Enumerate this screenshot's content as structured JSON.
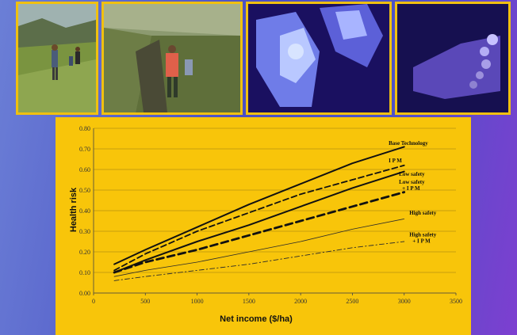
{
  "chart_data": {
    "type": "line",
    "xlabel": "Net income ($/ha)",
    "ylabel": "Health risk",
    "xlim": [
      0,
      3500
    ],
    "ylim": [
      0,
      0.8
    ],
    "xticks": [
      "0",
      "500",
      "1000",
      "1500",
      "2000",
      "2500",
      "3000",
      "3500"
    ],
    "yticks": [
      "0.00",
      "0.10",
      "0.20",
      "0.30",
      "0.40",
      "0.50",
      "0.60",
      "0.70",
      "0.80"
    ],
    "grid": true,
    "series": [
      {
        "name": "Base Technology",
        "style": "solid-thick",
        "x": [
          200,
          500,
          1000,
          1500,
          2000,
          2500,
          3000
        ],
        "y": [
          0.14,
          0.21,
          0.32,
          0.43,
          0.53,
          0.63,
          0.71
        ]
      },
      {
        "name": "I P M",
        "style": "dashed",
        "x": [
          200,
          500,
          1000,
          1500,
          2000,
          2500,
          3000
        ],
        "y": [
          0.11,
          0.19,
          0.3,
          0.39,
          0.48,
          0.55,
          0.62
        ]
      },
      {
        "name": "Low safety",
        "style": "solid-thick",
        "x": [
          200,
          500,
          1000,
          1500,
          2000,
          2500,
          3000
        ],
        "y": [
          0.1,
          0.16,
          0.25,
          0.33,
          0.42,
          0.51,
          0.59
        ]
      },
      {
        "name": "Low safety + I P M",
        "style": "dashed-thick",
        "x": [
          200,
          500,
          1000,
          1500,
          2000,
          2500,
          3000
        ],
        "y": [
          0.1,
          0.15,
          0.21,
          0.28,
          0.35,
          0.42,
          0.49
        ]
      },
      {
        "name": "High safety",
        "style": "solid-thin",
        "x": [
          200,
          500,
          1000,
          1500,
          2000,
          2500,
          3000
        ],
        "y": [
          0.08,
          0.11,
          0.15,
          0.2,
          0.25,
          0.31,
          0.36
        ]
      },
      {
        "name": "High safety + I P M",
        "style": "dashdot-thin",
        "x": [
          200,
          500,
          1000,
          1500,
          2000,
          2500,
          3000
        ],
        "y": [
          0.06,
          0.08,
          0.11,
          0.14,
          0.18,
          0.22,
          0.25
        ]
      }
    ],
    "series_labels": [
      {
        "lines": [
          "Base Technology"
        ],
        "x": 2850,
        "y": 0.72
      },
      {
        "lines": [
          "I P M"
        ],
        "x": 2850,
        "y": 0.635
      },
      {
        "lines": [
          "Low safety"
        ],
        "x": 2950,
        "y": 0.57
      },
      {
        "lines": [
          "Low safety",
          "+ I P M"
        ],
        "x": 2950,
        "y": 0.53
      },
      {
        "lines": [
          "High safety"
        ],
        "x": 3050,
        "y": 0.38
      },
      {
        "lines": [
          "High safety",
          "+ I P M"
        ],
        "x": 3050,
        "y": 0.275
      }
    ]
  },
  "colors": {
    "panel_background": "#f8c50a",
    "photo_border": "#f0c010",
    "line_color": "#111111",
    "thin_line_color": "#2a2a2a"
  }
}
